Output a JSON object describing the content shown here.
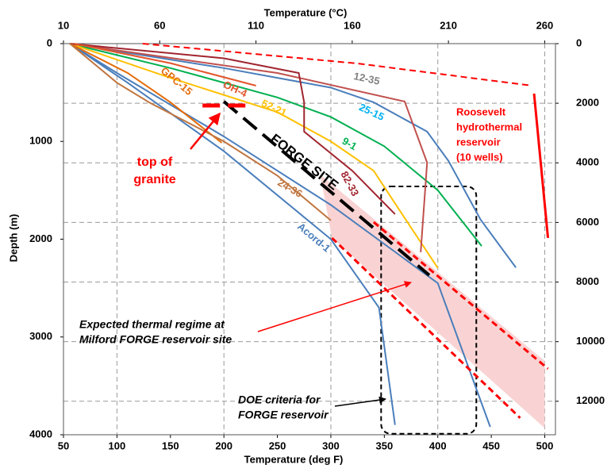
{
  "chart_data": {
    "type": "line",
    "x_title": "Temperature (deg F)",
    "x2_title": "Temperature (°C)",
    "y_title": "Depth (m)",
    "xlim": [
      50,
      510
    ],
    "xticks": [
      50,
      100,
      150,
      200,
      250,
      300,
      350,
      400,
      450,
      500
    ],
    "x2lim": [
      10,
      265.6
    ],
    "x2ticks": [
      10,
      60,
      110,
      160,
      210,
      260
    ],
    "ylim": [
      0,
      4000
    ],
    "yticks": [
      0,
      1000,
      2000,
      3000,
      4000
    ],
    "y2lim": [
      0,
      13123
    ],
    "y2ticks": [
      0,
      2000,
      4000,
      6000,
      8000,
      10000,
      12000
    ],
    "grid": true,
    "area": {
      "color": "#f9d3d3",
      "x": [
        290,
        301,
        500,
        500
      ],
      "values": [
        1338,
        1987,
        3932,
        3245
      ]
    },
    "box": {
      "x": [
        347,
        436
      ],
      "values": [
        1460,
        3990
      ],
      "color": "#000000"
    },
    "series": [
      {
        "name": "Acord-1",
        "color": "#4a7ebb",
        "x": [
          56,
          100,
          200,
          300,
          400,
          449
        ],
        "values": [
          0,
          300,
          950,
          1650,
          2450,
          3920
        ]
      },
      {
        "color": "#4a7ebb",
        "x": [
          56,
          110,
          200,
          300,
          345,
          360
        ],
        "values": [
          0,
          400,
          1100,
          2000,
          2700,
          3900
        ]
      },
      {
        "name": "25-15",
        "color": "#4a7ebb",
        "label_color": "#00b0f0",
        "x": [
          56,
          200,
          300,
          340,
          390,
          410,
          440,
          473
        ],
        "values": [
          0,
          250,
          450,
          600,
          900,
          1200,
          1800,
          2290
        ]
      },
      {
        "name": "9-1",
        "color": "#00b050",
        "x": [
          56,
          150,
          250,
          300,
          350,
          400,
          441
        ],
        "values": [
          0,
          250,
          550,
          750,
          1050,
          1500,
          2070
        ]
      },
      {
        "name": "52-21",
        "color": "#ffc000",
        "x": [
          56,
          150,
          250,
          300,
          340,
          370,
          400
        ],
        "values": [
          0,
          350,
          700,
          1000,
          1300,
          1800,
          2295
        ]
      },
      {
        "name": "12-35",
        "color": "#c0504d",
        "label_color": "#808080",
        "x": [
          56,
          250,
          369,
          390,
          384
        ],
        "values": [
          0,
          300,
          592,
          1217,
          2133
        ]
      },
      {
        "name": "82-33",
        "color": "#a0252f",
        "x": [
          56,
          200,
          270,
          275,
          275,
          320,
          360
        ],
        "values": [
          0,
          150,
          300,
          600,
          900,
          1300,
          1744
        ]
      },
      {
        "name": "GPC-15",
        "color": "#e46c0a",
        "x": [
          56,
          110,
          150,
          198
        ],
        "values": [
          0,
          300,
          600,
          1014
        ]
      },
      {
        "name": "24-36",
        "color": "#c0753e",
        "x": [
          56,
          100,
          130,
          200,
          250,
          300
        ],
        "values": [
          0,
          400,
          600,
          1000,
          1350,
          1808
        ]
      },
      {
        "name": "OH-4",
        "color": "#e2552b",
        "x": [
          60,
          150,
          230
        ],
        "values": [
          0,
          200,
          430
        ]
      },
      {
        "color": "#ff0000",
        "width": 3,
        "x": [
          490,
          503
        ],
        "values": [
          511,
          1987
        ]
      },
      {
        "color": "#ff0000",
        "dash": true,
        "x": [
          124,
          325,
          488
        ],
        "values": [
          0,
          203,
          430
        ]
      },
      {
        "color": "#ff0000",
        "width": 3,
        "dash": true,
        "x": [
          340,
          503
        ],
        "values": [
          1825,
          3325
        ]
      },
      {
        "color": "#ff0000",
        "width": 3,
        "dash": true,
        "x": [
          301,
          477
        ],
        "values": [
          1987,
          3828
        ]
      },
      {
        "name": "FORGE SITE",
        "color": "#000000",
        "width": 4,
        "dash": true,
        "x": [
          200,
          392
        ],
        "values": [
          592,
          2368
        ]
      },
      {
        "color": "#ff0000",
        "width": 5,
        "dash": true,
        "x": [
          180,
          227
        ],
        "values": [
          633,
          633
        ]
      }
    ],
    "annotations": [
      {
        "lines": [
          "top of",
          "granite"
        ],
        "color": "#ff0000"
      },
      {
        "lines": [
          "Expected thermal regime at",
          "Milford FORGE reservoir site"
        ],
        "color": "#000000"
      },
      {
        "lines": [
          "DOE criteria for",
          "FORGE reservoir"
        ],
        "color": "#000000"
      },
      {
        "lines": [
          "Roosevelt",
          "hydrothermal",
          "reservoir",
          "(10 wells)"
        ],
        "color": "#ff0000"
      }
    ]
  }
}
